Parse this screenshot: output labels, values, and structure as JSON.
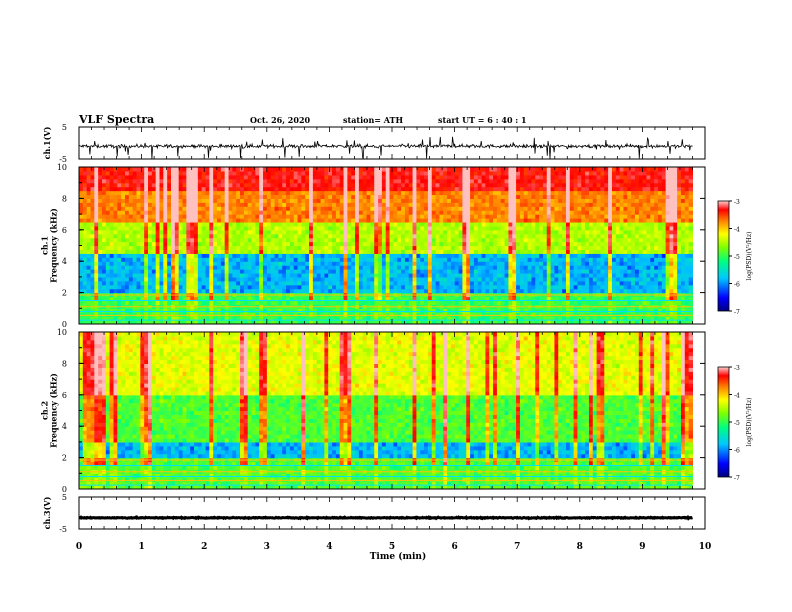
{
  "header": {
    "title": "VLF Spectra",
    "date": "Oct. 26, 2020",
    "station": "station= ATH",
    "start_ut": "start  UT  =   6  : 40 : 1"
  },
  "chart_data": [
    {
      "type": "line",
      "panel": "ch1-waveform",
      "ylabel": "ch.1(V)",
      "ylim": [
        -5,
        5
      ],
      "yticks": [
        5,
        -5
      ],
      "xlim": [
        0,
        10
      ],
      "description_values": {
        "baseline_v": -1.0,
        "spike_max_v": 3.0,
        "spike_min_v": -4.0
      }
    },
    {
      "type": "heatmap",
      "panel": "ch1-spectrogram",
      "ylabel": "ch.1\nFrequency (kHz)",
      "ylim": [
        0,
        10
      ],
      "yticks": [
        0,
        2,
        4,
        6,
        8,
        10
      ],
      "xlim": [
        0,
        10
      ],
      "colorbar": {
        "label": "log(PSD)(V²/Hz)",
        "range": [
          -7,
          -3
        ],
        "ticks": [
          -3,
          -4,
          -5,
          -6,
          -7
        ]
      },
      "bands": [
        {
          "from_khz": 0.0,
          "to_khz": 2.0,
          "log_psd": -5.3
        },
        {
          "from_khz": 2.0,
          "to_khz": 4.5,
          "log_psd": -6.0
        },
        {
          "from_khz": 4.5,
          "to_khz": 6.5,
          "log_psd": -4.8
        },
        {
          "from_khz": 6.5,
          "to_khz": 8.5,
          "log_psd": -4.0
        },
        {
          "from_khz": 8.5,
          "to_khz": 10.0,
          "log_psd": -3.5
        }
      ]
    },
    {
      "type": "heatmap",
      "panel": "ch2-spectrogram",
      "ylabel": "ch.2\nFrequency (kHz)",
      "ylim": [
        0,
        10
      ],
      "yticks": [
        0,
        2,
        4,
        6,
        8,
        10
      ],
      "xlim": [
        0,
        10
      ],
      "colorbar": {
        "label": "log(PSD)(V²/Hz)",
        "range": [
          -7,
          -3
        ],
        "ticks": [
          -3,
          -4,
          -5,
          -6,
          -7
        ]
      },
      "bands": [
        {
          "from_khz": 0.0,
          "to_khz": 2.0,
          "log_psd": -5.2
        },
        {
          "from_khz": 2.0,
          "to_khz": 3.0,
          "log_psd": -6.0
        },
        {
          "from_khz": 3.0,
          "to_khz": 6.0,
          "log_psd": -5.2
        },
        {
          "from_khz": 6.0,
          "to_khz": 10.0,
          "log_psd": -4.6
        }
      ]
    },
    {
      "type": "line",
      "panel": "ch3-waveform",
      "ylabel": "ch.3(V)",
      "ylim": [
        -5,
        5
      ],
      "yticks": [
        5,
        -5
      ],
      "xlim": [
        0,
        10
      ],
      "description_values": {
        "baseline_v": -1.5
      }
    }
  ],
  "x_axis": {
    "label": "Time  (min)",
    "ticks": [
      "0",
      "1",
      "2",
      "3",
      "4",
      "5",
      "6",
      "7",
      "8",
      "9",
      "10"
    ]
  },
  "colors": {
    "axis": "#000000",
    "background": "#ffffff",
    "colormap": [
      "#000080",
      "#0000ff",
      "#00c0ff",
      "#00ff80",
      "#80ff00",
      "#ffff00",
      "#ff8000",
      "#ff0000",
      "#ffc0c0"
    ]
  }
}
